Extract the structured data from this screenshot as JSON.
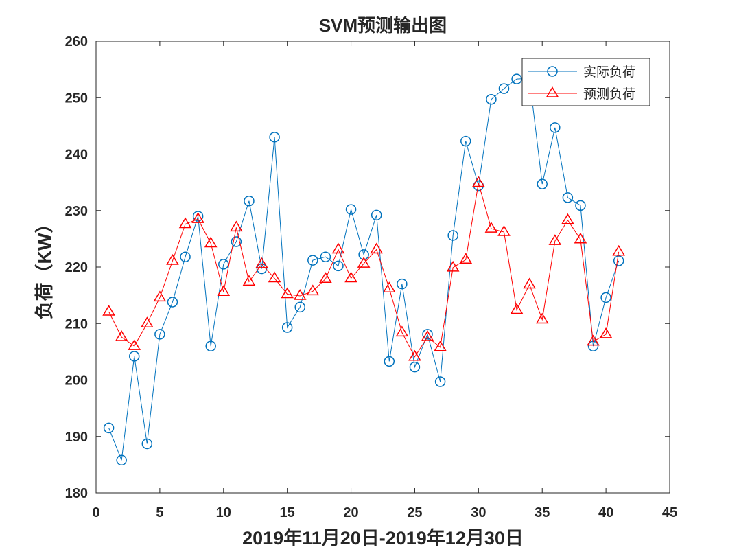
{
  "chart_data": {
    "type": "line",
    "title": "SVM预测输出图",
    "xlabel": "2019年11月20日-2019年12月30日",
    "ylabel": "负荷（KW）",
    "xlim": [
      0,
      45
    ],
    "ylim": [
      180,
      260
    ],
    "xticks": [
      0,
      5,
      10,
      15,
      20,
      25,
      30,
      35,
      40,
      45
    ],
    "yticks": [
      180,
      190,
      200,
      210,
      220,
      230,
      240,
      250,
      260
    ],
    "grid": false,
    "legend_position": "top-right",
    "x": [
      1,
      2,
      3,
      4,
      5,
      6,
      7,
      8,
      9,
      10,
      11,
      12,
      13,
      14,
      15,
      16,
      17,
      18,
      19,
      20,
      21,
      22,
      23,
      24,
      25,
      26,
      27,
      28,
      29,
      30,
      31,
      32,
      33,
      34,
      35,
      36,
      37,
      38,
      39,
      40,
      41
    ],
    "series": [
      {
        "name": "实际负荷",
        "color": "#0072BD",
        "marker": "circle",
        "values": [
          191.5,
          185.8,
          204.2,
          188.7,
          208.1,
          213.8,
          221.8,
          229.0,
          206.0,
          220.5,
          224.5,
          231.7,
          219.7,
          243.0,
          209.3,
          212.9,
          221.2,
          221.8,
          220.2,
          230.2,
          222.2,
          229.2,
          203.3,
          217.0,
          202.3,
          208.1,
          199.7,
          225.6,
          242.3,
          234.4,
          249.7,
          251.6,
          253.3,
          253.4,
          234.7,
          244.7,
          232.3,
          230.9,
          206.0,
          214.6,
          221.1
        ]
      },
      {
        "name": "预测负荷",
        "color": "#FF0000",
        "marker": "triangle",
        "values": [
          212.1,
          207.6,
          206.0,
          210.0,
          214.6,
          221.1,
          227.6,
          228.5,
          224.2,
          215.6,
          227.0,
          217.4,
          220.5,
          218.0,
          215.2,
          214.9,
          215.7,
          217.9,
          223.1,
          218.0,
          220.6,
          223.1,
          216.2,
          208.4,
          204.1,
          207.6,
          205.8,
          219.9,
          221.3,
          234.9,
          226.8,
          226.2,
          212.4,
          216.9,
          210.7,
          224.6,
          228.3,
          224.9,
          206.8,
          208.1,
          222.7
        ]
      }
    ]
  }
}
